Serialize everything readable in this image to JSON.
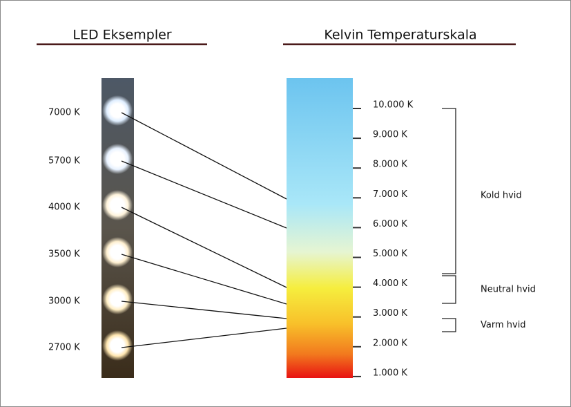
{
  "titles": {
    "left": "LED Eksempler",
    "right": "Kelvin Temperaturskala"
  },
  "leds": [
    {
      "label": "7000 K",
      "glow": "#dfeeff"
    },
    {
      "label": "5700 K",
      "glow": "#e8f2ff"
    },
    {
      "label": "4000 K",
      "glow": "#fff4dc"
    },
    {
      "label": "3500 K",
      "glow": "#fff0d0"
    },
    {
      "label": "3000 K",
      "glow": "#ffeec4"
    },
    {
      "label": "2700 K",
      "glow": "#ffe6b0"
    }
  ],
  "scale": {
    "ticks": [
      "10.000 K",
      "9.000 K",
      "8.000 K",
      "7.000 K",
      "6.000 K",
      "5.000 K",
      "4.000 K",
      "3.000 K",
      "2.000 K",
      "1.000 K"
    ]
  },
  "ranges": [
    {
      "label": "Kold hvid"
    },
    {
      "label": "Neutral hvid"
    },
    {
      "label": "Varm hvid"
    }
  ]
}
